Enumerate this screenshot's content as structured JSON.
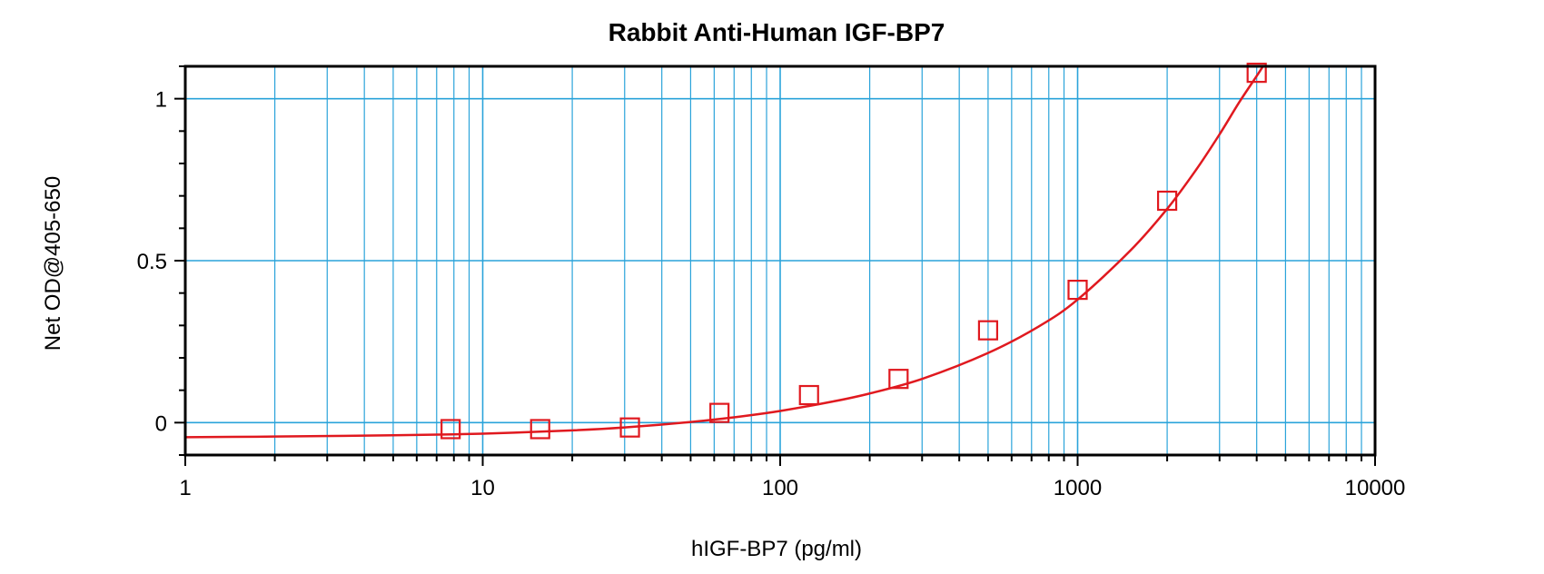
{
  "chart_data": {
    "type": "scatter",
    "title": "Rabbit Anti-Human IGF-BP7",
    "xlabel": "hIGF-BP7 (pg/ml)",
    "ylabel": "Net OD@405-650",
    "x_scale": "log",
    "y_scale": "linear",
    "xlim": [
      1,
      10000
    ],
    "ylim": [
      -0.1,
      1.1
    ],
    "x_ticks": [
      {
        "value": 1,
        "label": "1"
      },
      {
        "value": 10,
        "label": "10"
      },
      {
        "value": 100,
        "label": "100"
      },
      {
        "value": 1000,
        "label": "1000"
      },
      {
        "value": 10000,
        "label": "10000"
      }
    ],
    "y_ticks": [
      {
        "value": 0,
        "label": "0"
      },
      {
        "value": 0.5,
        "label": "0.5"
      },
      {
        "value": 1,
        "label": "1"
      }
    ],
    "grid": true,
    "legend": "none",
    "series": [
      {
        "marker": "open-square",
        "color": "#e0191f",
        "x": [
          7.8,
          15.6,
          31.25,
          62.5,
          125,
          250,
          500,
          1000,
          2000,
          4000
        ],
        "y": [
          -0.02,
          -0.02,
          -0.015,
          0.03,
          0.085,
          0.135,
          0.285,
          0.41,
          0.685,
          1.08
        ]
      }
    ],
    "fit_curve": {
      "color": "#e0191f",
      "x": [
        1,
        2,
        5,
        10,
        20,
        30,
        50,
        75,
        100,
        150,
        200,
        300,
        500,
        750,
        1000,
        1500,
        2000,
        2500,
        3000,
        3500,
        4000,
        4200
      ],
      "y": [
        -0.045,
        -0.043,
        -0.039,
        -0.034,
        -0.024,
        -0.015,
        0.002,
        0.02,
        0.036,
        0.065,
        0.09,
        0.135,
        0.215,
        0.3,
        0.38,
        0.53,
        0.66,
        0.78,
        0.89,
        0.99,
        1.07,
        1.1
      ]
    },
    "colors": {
      "grid": "#2aa3da",
      "data": "#e0191f",
      "frame": "#000000"
    }
  }
}
